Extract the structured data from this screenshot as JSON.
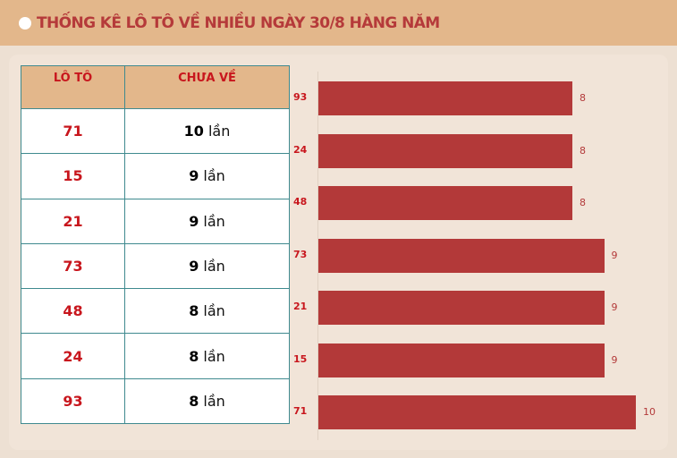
{
  "header": {
    "title": "THỐNG KÊ LÔ TÔ VỀ NHIỀU NGÀY 30/8 HÀNG NĂM"
  },
  "table": {
    "headers": [
      "LÔ TÔ",
      "CHƯA VỀ"
    ],
    "unit": "lần",
    "rows": [
      {
        "lo": "71",
        "count": "10"
      },
      {
        "lo": "15",
        "count": "9"
      },
      {
        "lo": "21",
        "count": "9"
      },
      {
        "lo": "73",
        "count": "9"
      },
      {
        "lo": "48",
        "count": "8"
      },
      {
        "lo": "24",
        "count": "8"
      },
      {
        "lo": "93",
        "count": "8"
      }
    ]
  },
  "chart_data": {
    "type": "bar",
    "orientation": "horizontal",
    "categories": [
      "93",
      "24",
      "48",
      "73",
      "21",
      "15",
      "71"
    ],
    "values": [
      8,
      8,
      8,
      9,
      9,
      9,
      10
    ],
    "color": "#b33939",
    "grid": false
  }
}
